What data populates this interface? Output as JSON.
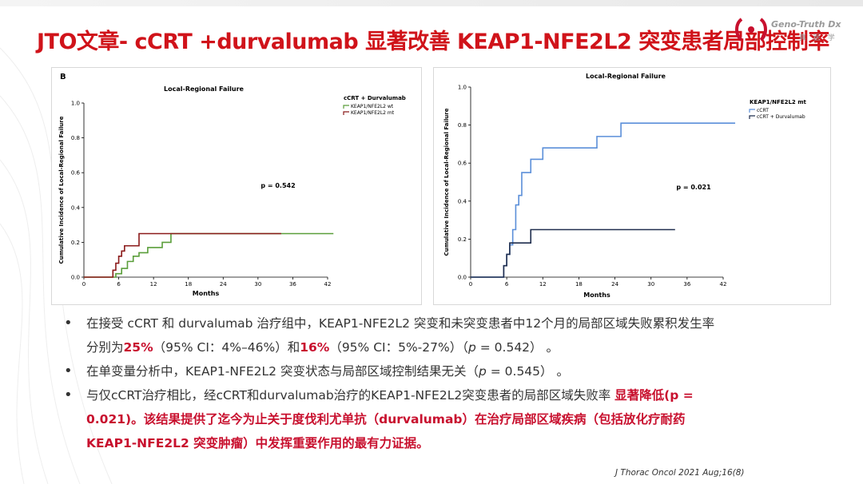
{
  "slide": {
    "title": "JTO文章- cCRT +durvalumab 显著改善 KEAP1-NFE2L2 突变患者局部控制率",
    "logo_text": "Geno-Truth Dx",
    "logo_sub": "真 医 学",
    "citation": "J Thorac Oncol 2021 Aug;16(8)"
  },
  "colors": {
    "title_red": "#d0131a",
    "wt_green": "#5a9e3a",
    "mt_darkred": "#8b1a1a",
    "ccrt_blue": "#5b8fd9",
    "ccrt_durva_navy": "#1f2d4d"
  },
  "bullets": {
    "b1_line1": "在接受 cCRT 和 durvalumab 治疗组中，KEAP1-NFE2L2 突变和未突变患者中12个月的局部区域失败累积发生率",
    "b1_pre": "分别为",
    "b1_v1": "25%",
    "b1_mid": "（95% CI：4%–46%）和",
    "b1_v2": "16%",
    "b1_post": "（95% CI：5%-27%）（",
    "b1_p": "p",
    "b1_pval": " = 0.542）  。",
    "b2_pre": "在单变量分析中，KEAP1-NFE2L2 突变状态与局部区域控制结果无关（",
    "b2_p": "p",
    "b2_pval": " = 0.545）  。",
    "b3_pre": "与仅cCRT治疗相比，经cCRT和durvalumab治疗的KEAP1-NFE2L2突变患者的局部区域失败率 ",
    "b3_red1": "显著降低(p =",
    "b3_red2": "0.021)。该结果提供了迄今为止关于度伐利尤单抗（durvalumab）在治疗局部区域疾病（包括放化疗耐药",
    "b3_red3": "KEAP1-NFE2L2 突变肿瘤）中发挥重要作用的最有力证据。"
  },
  "chart_data": [
    {
      "type": "line",
      "step": true,
      "panel_label": "B",
      "title": "Local-Regional Failure",
      "xlabel": "Months",
      "ylabel": "Cumulative Incidence of Local-Regional Failure",
      "xlim": [
        0,
        42
      ],
      "ylim": [
        0,
        1.0
      ],
      "xticks": [
        0,
        6,
        12,
        18,
        24,
        30,
        36,
        42
      ],
      "yticks": [
        0.0,
        0.2,
        0.4,
        0.6,
        0.8,
        1.0
      ],
      "legend_title": "cCRT + Durvalumab",
      "legend_position": "top-right",
      "annotation": "p = 0.542",
      "series": [
        {
          "name": "KEAP1/NFE2L2 wt",
          "color": "#5a9e3a",
          "x": [
            0,
            5.5,
            6.5,
            7.5,
            8.5,
            9.5,
            11,
            13.5,
            15,
            43
          ],
          "y": [
            0,
            0.02,
            0.05,
            0.09,
            0.12,
            0.14,
            0.17,
            0.2,
            0.25,
            0.25
          ]
        },
        {
          "name": "KEAP1/NFE2L2 mt",
          "color": "#8b1a1a",
          "x": [
            0,
            5,
            5.5,
            6,
            6.5,
            7,
            9.5,
            34
          ],
          "y": [
            0,
            0.04,
            0.08,
            0.12,
            0.15,
            0.18,
            0.25,
            0.25
          ]
        }
      ]
    },
    {
      "type": "line",
      "step": true,
      "title": "Local-Regional Failure",
      "xlabel": "Months",
      "ylabel": "Cumulative Incidence of Local-Regional Failure",
      "xlim": [
        0,
        42
      ],
      "ylim": [
        0,
        1.0
      ],
      "xticks": [
        0,
        6,
        12,
        18,
        24,
        30,
        36,
        42
      ],
      "yticks": [
        0.0,
        0.2,
        0.4,
        0.6,
        0.8,
        1.0
      ],
      "legend_title": "KEAP1/NFE2L2 mt",
      "legend_position": "top-right",
      "annotation": "p = 0.021",
      "series": [
        {
          "name": "cCRT",
          "color": "#5b8fd9",
          "x": [
            0,
            5.5,
            6,
            6.5,
            7,
            7.5,
            8,
            8.5,
            10,
            12,
            21,
            25,
            44
          ],
          "y": [
            0,
            0.06,
            0.12,
            0.17,
            0.25,
            0.38,
            0.43,
            0.55,
            0.62,
            0.68,
            0.74,
            0.81,
            0.81
          ]
        },
        {
          "name": "cCRT + Durvalumab",
          "color": "#1f2d4d",
          "x": [
            0,
            5.5,
            6,
            6.5,
            10,
            34
          ],
          "y": [
            0,
            0.06,
            0.12,
            0.18,
            0.25,
            0.25
          ]
        }
      ]
    }
  ]
}
